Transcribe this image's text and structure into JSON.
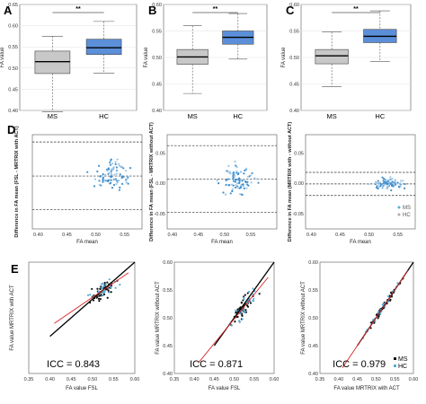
{
  "panel_letters": [
    "A",
    "B",
    "C",
    "D",
    "E"
  ],
  "colors": {
    "ms_box": "#c8c8c8",
    "hc_box": "#5b8fd9",
    "ms_point": "#111111",
    "hc_point": "#55b0d8",
    "ba_point": "#3f8fce",
    "fit_line": "#d62728",
    "identity_line": "#000000"
  },
  "chart_data": [
    {
      "type": "box",
      "panel": "A",
      "ylabel": "FA value",
      "ylim": [
        0.4,
        0.65
      ],
      "yticks": [
        "0.40",
        "0.45",
        "0.50",
        "0.55",
        "0.60",
        "0.65"
      ],
      "categories": [
        "MS",
        "HC"
      ],
      "significance": "**",
      "boxes": [
        {
          "name": "MS",
          "min": 0.397,
          "q1": 0.487,
          "median": 0.515,
          "q3": 0.54,
          "max": 0.575
        },
        {
          "name": "HC",
          "min": 0.488,
          "q1": 0.532,
          "median": 0.548,
          "q3": 0.568,
          "max": 0.61
        }
      ]
    },
    {
      "type": "box",
      "panel": "B",
      "ylabel": "FA value",
      "ylim": [
        0.4,
        0.6
      ],
      "yticks": [
        "0.40",
        "0.45",
        "0.50",
        "0.55",
        "0.60"
      ],
      "categories": [
        "MS",
        "HC"
      ],
      "significance": "**",
      "boxes": [
        {
          "name": "MS",
          "min": 0.432,
          "q1": 0.487,
          "median": 0.501,
          "q3": 0.515,
          "max": 0.56
        },
        {
          "name": "HC",
          "min": 0.497,
          "q1": 0.525,
          "median": 0.538,
          "q3": 0.55,
          "max": 0.583
        }
      ]
    },
    {
      "type": "box",
      "panel": "C",
      "ylabel": "FA value",
      "ylim": [
        0.4,
        0.6
      ],
      "yticks": [
        "0.40",
        "0.45",
        "0.50",
        "0.55",
        "0.60"
      ],
      "categories": [
        "MS",
        "HC"
      ],
      "significance": "**",
      "boxes": [
        {
          "name": "MS",
          "min": 0.445,
          "q1": 0.488,
          "median": 0.503,
          "q3": 0.515,
          "max": 0.548
        },
        {
          "name": "HC",
          "min": 0.492,
          "q1": 0.528,
          "median": 0.54,
          "q3": 0.553,
          "max": 0.588
        }
      ]
    },
    {
      "type": "scatter",
      "panel": "D1",
      "xlabel": "FA mean",
      "ylabel": "Difference in FA mean (FSL - MRTRIX with ACT)",
      "xlim": [
        0.39,
        0.58
      ],
      "ylim": [
        -0.075,
        0.08
      ],
      "xticks": [
        "0.40",
        "0.45",
        "0.50",
        "0.55"
      ],
      "yticks": [],
      "refs": [
        0.068,
        0.012,
        -0.043
      ],
      "seed": 11,
      "n_ms": 55,
      "n_hc": 30,
      "x_center": 0.528,
      "x_spread": 0.02,
      "y_center": 0.012,
      "y_spread": 0.017
    },
    {
      "type": "scatter",
      "panel": "D2",
      "xlabel": "FA mean",
      "ylabel": "Difference in FA mean (FSL - MRTRIX without ACT)",
      "xlim": [
        0.39,
        0.6
      ],
      "ylim": [
        -0.075,
        0.08
      ],
      "xticks": [
        "0.40",
        "0.45",
        "0.50",
        "0.55"
      ],
      "yticks": [
        "0.05",
        "0.00",
        "-0.05"
      ],
      "refs": [
        0.062,
        0.007,
        -0.048
      ],
      "seed": 23,
      "n_ms": 55,
      "n_hc": 30,
      "x_center": 0.525,
      "x_spread": 0.021,
      "y_center": 0.007,
      "y_spread": 0.018
    },
    {
      "type": "scatter",
      "panel": "D3",
      "xlabel": "FA mean",
      "ylabel": "Difference in FA mean (MRTRIX with - without ACT)",
      "xlim": [
        0.39,
        0.58
      ],
      "ylim": [
        -0.075,
        0.08
      ],
      "xticks": [
        "0.40",
        "0.45",
        "0.50",
        "0.55"
      ],
      "yticks": [
        "0.05",
        "0.00",
        "-0.05"
      ],
      "refs": [
        0.018,
        -0.001,
        -0.02
      ],
      "seed": 37,
      "n_ms": 60,
      "n_hc": 28,
      "x_center": 0.532,
      "x_spread": 0.017,
      "y_center": -0.001,
      "y_spread": 0.006,
      "legend": [
        {
          "name": "MS",
          "color": "#55b0d8"
        },
        {
          "name": "HC",
          "color": "#aaaaaa"
        }
      ]
    },
    {
      "type": "scatter",
      "panel": "E1",
      "xlabel": "FA value FSL",
      "ylabel": "FA value MRTRIX with ACT",
      "xlim": [
        0.35,
        0.6
      ],
      "ylim": [
        0.3,
        0.6
      ],
      "xticks": [
        "0.35",
        "0.40",
        "0.45",
        "0.50",
        "0.55",
        "0.60"
      ],
      "yticks": [],
      "icc": "ICC = 0.843",
      "identity": true,
      "fit": {
        "slope": 0.78,
        "intercept": 0.115
      },
      "seed": 5,
      "n_ms": 55,
      "n_hc": 30,
      "x_center": 0.525,
      "x_spread": 0.022,
      "noise": 0.016
    },
    {
      "type": "scatter",
      "panel": "E2",
      "xlabel": "FA value FSL",
      "ylabel": "FA value MRTRIX without ACT",
      "xlim": [
        0.35,
        0.6
      ],
      "ylim": [
        0.4,
        0.6
      ],
      "xticks": [
        "0.35",
        "0.40",
        "0.45",
        "0.50",
        "0.55",
        "0.60"
      ],
      "yticks": [
        "0.40",
        "0.45",
        "0.50",
        "0.55",
        "0.60"
      ],
      "icc": "ICC = 0.871",
      "identity": true,
      "fit": {
        "slope": 0.88,
        "intercept": 0.058
      },
      "seed": 9,
      "n_ms": 55,
      "n_hc": 30,
      "x_center": 0.525,
      "x_spread": 0.022,
      "noise": 0.013
    },
    {
      "type": "scatter",
      "panel": "E3",
      "xlabel": "FA value MRTRIX with ACT",
      "ylabel": "FA value MRTRIX without ACT",
      "xlim": [
        0.35,
        0.6
      ],
      "ylim": [
        0.4,
        0.6
      ],
      "xticks": [
        "0.35",
        "0.40",
        "0.45",
        "0.50",
        "0.55",
        "0.60"
      ],
      "yticks": [
        "0.40",
        "0.45",
        "0.50",
        "0.55",
        "0.60"
      ],
      "icc": "ICC = 0.979",
      "identity": true,
      "fit": {
        "slope": 1.0,
        "intercept": 0.0
      },
      "seed": 17,
      "n_ms": 55,
      "n_hc": 30,
      "x_center": 0.52,
      "x_spread": 0.03,
      "noise": 0.004,
      "legend": [
        {
          "name": "MS",
          "color": "#111111"
        },
        {
          "name": "HC",
          "color": "#55b0d8"
        }
      ]
    }
  ]
}
